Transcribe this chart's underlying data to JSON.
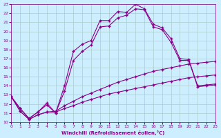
{
  "xlabel": "Windchill (Refroidissement éolien,°C)",
  "bg_color": "#cceeff",
  "grid_color": "#aacccc",
  "line_color": "#880088",
  "xlim": [
    0,
    23
  ],
  "ylim": [
    10,
    23
  ],
  "xticks": [
    0,
    1,
    2,
    3,
    4,
    5,
    6,
    7,
    8,
    9,
    10,
    11,
    12,
    13,
    14,
    15,
    16,
    17,
    18,
    19,
    20,
    21,
    22,
    23
  ],
  "yticks": [
    10,
    11,
    12,
    13,
    14,
    15,
    16,
    17,
    18,
    19,
    20,
    21,
    22,
    23
  ],
  "curve1_x": [
    0,
    1,
    2,
    3,
    4,
    5,
    6,
    7,
    8,
    9,
    10,
    11,
    12,
    13,
    14,
    15,
    16,
    17,
    18,
    19,
    20,
    21,
    22,
    23
  ],
  "curve1_y": [
    12.8,
    11.5,
    10.4,
    11.1,
    12.1,
    11.0,
    14.0,
    17.8,
    18.6,
    19.0,
    21.2,
    21.2,
    22.2,
    22.1,
    23.0,
    22.5,
    20.8,
    20.4,
    19.2,
    17.0,
    16.9,
    14.0,
    14.1,
    14.2
  ],
  "curve2_x": [
    0,
    1,
    2,
    3,
    4,
    5,
    6,
    7,
    8,
    9,
    10,
    11,
    12,
    13,
    14,
    15,
    16,
    17,
    18,
    19,
    20,
    21,
    22,
    23
  ],
  "curve2_y": [
    12.8,
    11.5,
    10.4,
    11.1,
    11.9,
    11.0,
    13.4,
    16.8,
    17.8,
    18.5,
    20.5,
    20.6,
    21.5,
    21.8,
    22.5,
    22.4,
    20.5,
    20.2,
    18.8,
    16.8,
    16.8,
    13.9,
    14.0,
    14.1
  ],
  "curve3_x": [
    0,
    1,
    2,
    3,
    4,
    5,
    6,
    7,
    8,
    9,
    10,
    11,
    12,
    13,
    14,
    15,
    16,
    17,
    18,
    19,
    20,
    21,
    22,
    23
  ],
  "curve3_y": [
    12.8,
    11.2,
    10.3,
    10.8,
    11.1,
    11.1,
    11.5,
    11.8,
    12.2,
    12.5,
    12.8,
    13.1,
    13.3,
    13.5,
    13.7,
    13.9,
    14.1,
    14.3,
    14.5,
    14.7,
    14.9,
    15.0,
    15.1,
    15.2
  ],
  "curve4_x": [
    0,
    1,
    2,
    3,
    4,
    5,
    6,
    7,
    8,
    9,
    10,
    11,
    12,
    13,
    14,
    15,
    16,
    17,
    18,
    19,
    20,
    21,
    22,
    23
  ],
  "curve4_y": [
    12.8,
    11.2,
    10.3,
    10.8,
    11.1,
    11.2,
    11.8,
    12.3,
    12.8,
    13.2,
    13.6,
    14.0,
    14.4,
    14.7,
    15.0,
    15.3,
    15.6,
    15.8,
    16.0,
    16.2,
    16.4,
    16.5,
    16.6,
    16.7
  ]
}
